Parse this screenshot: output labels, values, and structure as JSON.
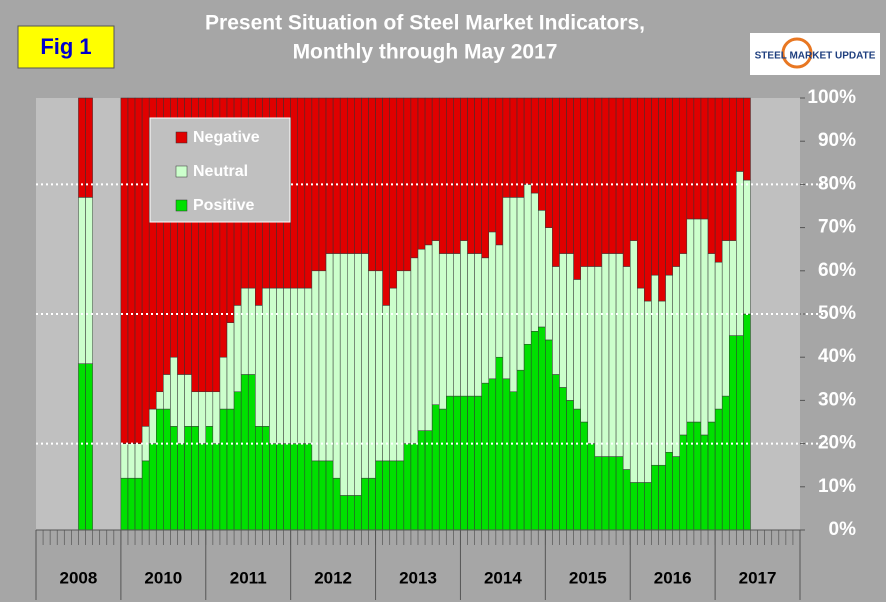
{
  "fig_label": "Fig 1",
  "logo": {
    "text": "STEEL MARKET UPDATE"
  },
  "chart_data": {
    "type": "stacked_bar",
    "title": [
      "Present Situation of Steel Market Indicators,",
      "Monthly through May 2017"
    ],
    "groups": [
      "2008",
      "2010",
      "2011",
      "2012",
      "2013",
      "2014",
      "2015",
      "2016",
      "2017"
    ],
    "series": [
      {
        "name": "Positive",
        "color": "#00e000",
        "values": [
          null,
          null,
          null,
          null,
          null,
          null,
          38.5,
          38.5,
          null,
          null,
          null,
          null,
          12,
          12,
          12,
          16,
          20,
          28,
          28,
          24,
          20,
          24,
          24,
          20,
          24,
          20,
          28,
          28,
          32,
          36,
          36,
          24,
          24,
          20,
          20,
          20,
          20,
          20,
          20,
          16,
          16,
          16,
          12,
          8,
          8,
          8,
          12,
          12,
          16,
          16,
          16,
          16,
          20,
          20,
          23,
          23,
          29,
          28,
          31,
          31,
          31,
          31,
          31,
          34,
          35,
          40,
          35,
          32,
          37,
          43,
          46,
          47,
          44,
          36,
          33,
          30,
          28,
          25,
          20,
          17,
          17,
          17,
          17,
          14,
          11,
          11,
          11,
          15,
          15,
          18,
          17,
          22,
          25,
          25,
          22,
          25,
          28,
          31,
          45,
          45,
          50,
          null,
          null,
          null,
          null,
          null,
          null,
          null
        ]
      },
      {
        "name": "Neutral",
        "color": "#ccffcc",
        "values": [
          null,
          null,
          null,
          null,
          null,
          null,
          38.5,
          38.5,
          null,
          null,
          null,
          null,
          8,
          8,
          8,
          8,
          8,
          4,
          8,
          16,
          16,
          12,
          8,
          12,
          8,
          12,
          12,
          20,
          20,
          20,
          20,
          28,
          32,
          36,
          36,
          36,
          36,
          36,
          36,
          44,
          44,
          48,
          52,
          56,
          56,
          56,
          52,
          48,
          44,
          36,
          40,
          44,
          40,
          43,
          42,
          43,
          38,
          36,
          33,
          33,
          36,
          33,
          33,
          29,
          34,
          26,
          42,
          45,
          40,
          37,
          32,
          27,
          26,
          25,
          31,
          34,
          30,
          36,
          41,
          44,
          47,
          47,
          47,
          47,
          56,
          45,
          42,
          44,
          38,
          41,
          44,
          42,
          47,
          47,
          50,
          39,
          34,
          36,
          22,
          38,
          31,
          null,
          null,
          null,
          null,
          null,
          null,
          null
        ]
      },
      {
        "name": "Negative",
        "color": "#e00000",
        "values": [
          null,
          null,
          null,
          null,
          null,
          null,
          23,
          23,
          null,
          null,
          null,
          null,
          80,
          80,
          80,
          76,
          72,
          68,
          64,
          60,
          64,
          64,
          68,
          68,
          68,
          68,
          60,
          52,
          48,
          44,
          44,
          48,
          44,
          44,
          44,
          44,
          44,
          44,
          44,
          40,
          40,
          36,
          36,
          36,
          36,
          36,
          36,
          40,
          40,
          48,
          44,
          40,
          40,
          37,
          35,
          34,
          33,
          36,
          36,
          36,
          33,
          36,
          36,
          37,
          31,
          34,
          23,
          23,
          23,
          20,
          22,
          26,
          30,
          39,
          36,
          36,
          42,
          39,
          39,
          39,
          36,
          36,
          36,
          39,
          33,
          44,
          47,
          41,
          47,
          41,
          39,
          36,
          28,
          28,
          28,
          36,
          38,
          33,
          33,
          17,
          19,
          null,
          null,
          null,
          null,
          null,
          null,
          null
        ]
      }
    ],
    "ylim": [
      0,
      100
    ],
    "yticks": [
      {
        "value": 0,
        "label": "0%"
      },
      {
        "value": 10,
        "label": "10%"
      },
      {
        "value": 20,
        "label": "20%"
      },
      {
        "value": 30,
        "label": "30%"
      },
      {
        "value": 40,
        "label": "40%"
      },
      {
        "value": 50,
        "label": "50%"
      },
      {
        "value": 60,
        "label": "60%"
      },
      {
        "value": 70,
        "label": "70%"
      },
      {
        "value": 80,
        "label": "80%"
      },
      {
        "value": 90,
        "label": "90%"
      },
      {
        "value": 100,
        "label": "100%"
      }
    ],
    "reference_lines": [
      20,
      50,
      80
    ],
    "legend_order": [
      2,
      1,
      0
    ]
  }
}
